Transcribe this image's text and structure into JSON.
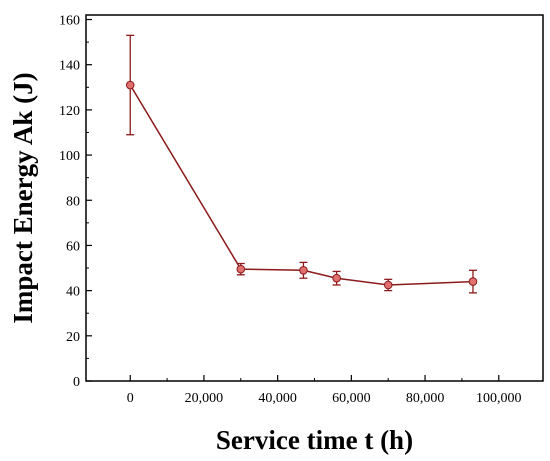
{
  "chart_data": {
    "type": "line",
    "title": "",
    "xlabel": "Service time t (h)",
    "ylabel": "Impact Energy Ak (J)",
    "xlim": [
      -12000,
      112000
    ],
    "ylim": [
      0,
      162
    ],
    "x_ticks": [
      0,
      20000,
      40000,
      60000,
      80000,
      100000
    ],
    "x_tick_labels": [
      "0",
      "20,000",
      "40,000",
      "60,000",
      "80,000",
      "100,000"
    ],
    "y_ticks": [
      0,
      20,
      40,
      60,
      80,
      100,
      120,
      140,
      160
    ],
    "y_tick_labels": [
      "0",
      "20",
      "40",
      "60",
      "80",
      "100",
      "120",
      "140",
      "160"
    ],
    "grid": false,
    "legend": "none",
    "series": [
      {
        "x": [
          0,
          30000,
          47000,
          56000,
          70000,
          93000
        ],
        "y": [
          131,
          49.5,
          49,
          45.5,
          42.5,
          44
        ],
        "err": [
          22,
          2.5,
          3.5,
          3,
          2.5,
          5
        ]
      }
    ],
    "colors": {
      "line": "#8b1a1a",
      "marker_fill": "#e07070",
      "marker_stroke": "#8b1a1a",
      "axis": "#000000"
    }
  }
}
